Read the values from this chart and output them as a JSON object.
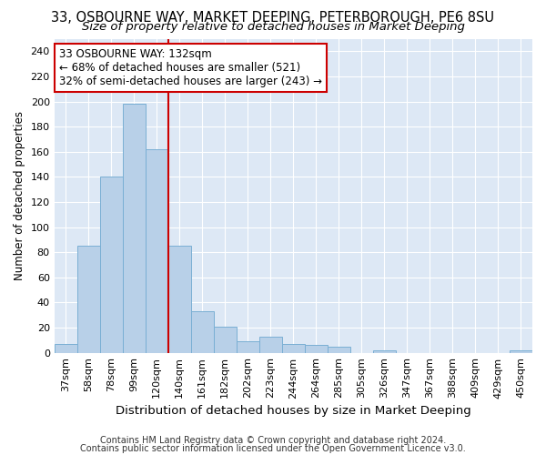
{
  "title1": "33, OSBOURNE WAY, MARKET DEEPING, PETERBOROUGH, PE6 8SU",
  "title2": "Size of property relative to detached houses in Market Deeping",
  "xlabel": "Distribution of detached houses by size in Market Deeping",
  "ylabel": "Number of detached properties",
  "categories": [
    "37sqm",
    "58sqm",
    "78sqm",
    "99sqm",
    "120sqm",
    "140sqm",
    "161sqm",
    "182sqm",
    "202sqm",
    "223sqm",
    "244sqm",
    "264sqm",
    "285sqm",
    "305sqm",
    "326sqm",
    "347sqm",
    "367sqm",
    "388sqm",
    "409sqm",
    "429sqm",
    "450sqm"
  ],
  "values": [
    7,
    85,
    140,
    198,
    162,
    85,
    33,
    21,
    9,
    13,
    7,
    6,
    5,
    0,
    2,
    0,
    0,
    0,
    0,
    0,
    2
  ],
  "bar_color": "#b8d0e8",
  "bar_edge_color": "#7aafd4",
  "vline_x_index": 5,
  "vline_color": "#cc0000",
  "annotation_text": "33 OSBOURNE WAY: 132sqm\n← 68% of detached houses are smaller (521)\n32% of semi-detached houses are larger (243) →",
  "annotation_box_color": "#ffffff",
  "annotation_box_edgecolor": "#cc0000",
  "ylim": [
    0,
    250
  ],
  "yticks": [
    0,
    20,
    40,
    60,
    80,
    100,
    120,
    140,
    160,
    180,
    200,
    220,
    240
  ],
  "footer1": "Contains HM Land Registry data © Crown copyright and database right 2024.",
  "footer2": "Contains public sector information licensed under the Open Government Licence v3.0.",
  "bg_color": "#ffffff",
  "plot_bg_color": "#dde8f5",
  "title1_fontsize": 10.5,
  "title2_fontsize": 9.5,
  "xlabel_fontsize": 9.5,
  "ylabel_fontsize": 8.5,
  "tick_fontsize": 8,
  "footer_fontsize": 7,
  "annotation_fontsize": 8.5
}
